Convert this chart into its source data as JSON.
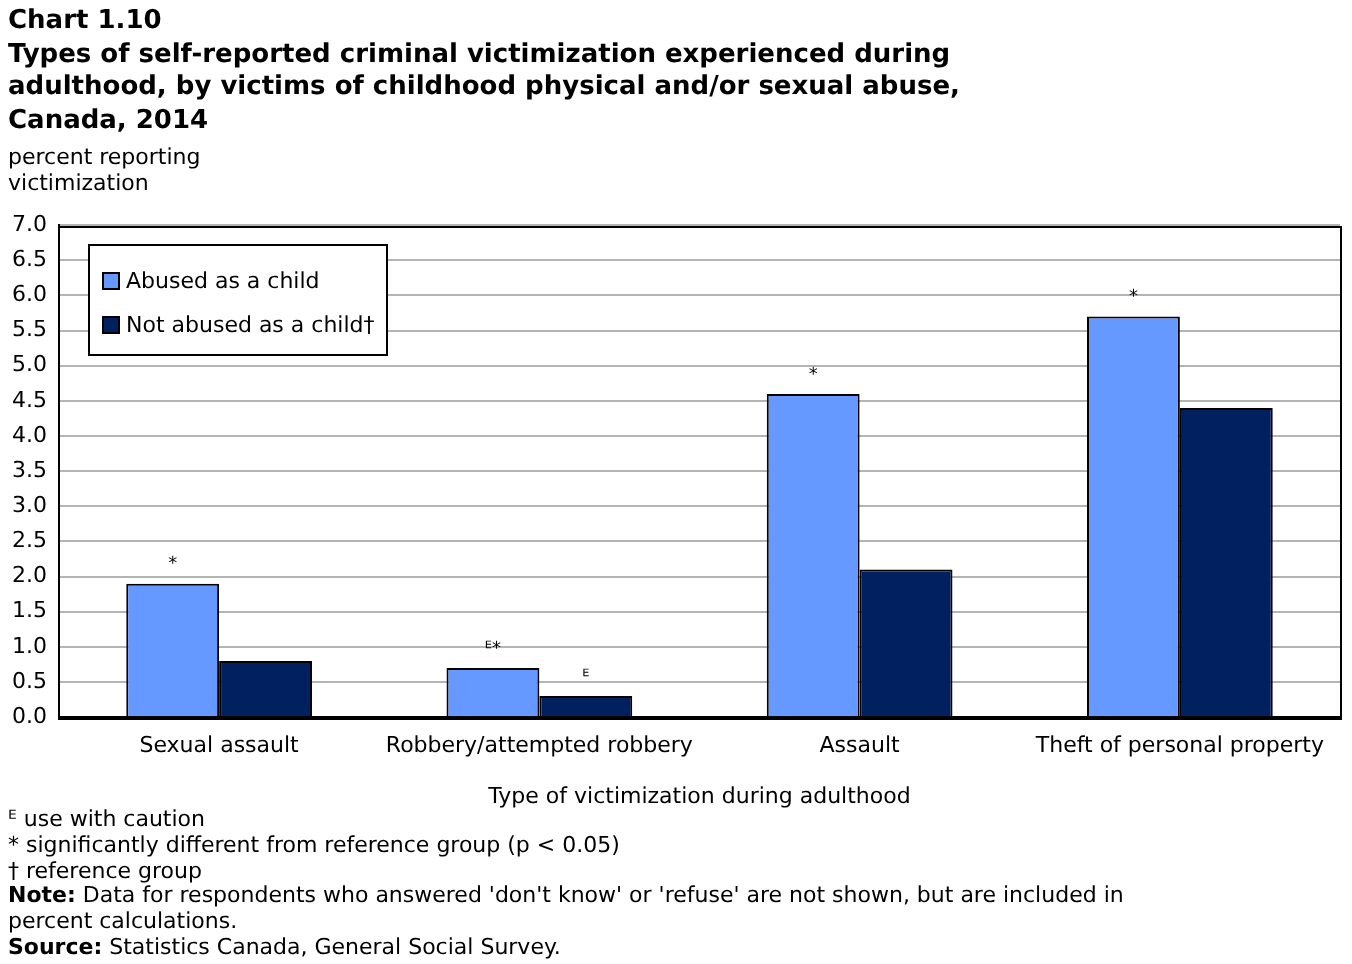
{
  "chart_data": {
    "type": "bar",
    "title": "Chart 1.10",
    "subtitle": "Types of self-reported criminal victimization experienced during adulthood, by victims of childhood physical and/or sexual abuse, Canada, 2014",
    "ylabel": "percent reporting victimization",
    "xlabel": "Type of victimization during adulthood",
    "categories": [
      "Sexual assault",
      "Robbery/attempted robbery",
      "Assault",
      "Theft of personal property"
    ],
    "series": [
      {
        "name": "Abused as a child",
        "color": "#6699ff",
        "values": [
          1.9,
          0.7,
          4.6,
          5.7
        ],
        "value_labels": [
          "*",
          "ᴱ*",
          "*",
          "*"
        ]
      },
      {
        "name": "Not abused as a child†",
        "color": "#002060",
        "values": [
          0.8,
          0.3,
          2.1,
          4.4
        ],
        "value_labels": [
          null,
          "ᴱ",
          null,
          null
        ]
      }
    ],
    "ylim": [
      0,
      7
    ],
    "yticks": [
      {
        "value": 0,
        "label": "0.0"
      },
      {
        "value": 0.5,
        "label": "0.5"
      },
      {
        "value": 1,
        "label": "1.0"
      },
      {
        "value": 1.5,
        "label": "1.5"
      },
      {
        "value": 2,
        "label": "2.0"
      },
      {
        "value": 2.5,
        "label": "2.5"
      },
      {
        "value": 3,
        "label": "3.0"
      },
      {
        "value": 3.5,
        "label": "3.5"
      },
      {
        "value": 4,
        "label": "4.0"
      },
      {
        "value": 4.5,
        "label": "4.5"
      },
      {
        "value": 5,
        "label": "5.0"
      },
      {
        "value": 5.5,
        "label": "5.5"
      },
      {
        "value": 6,
        "label": "6.0"
      },
      {
        "value": 6.5,
        "label": "6.5"
      },
      {
        "value": 7,
        "label": "7.0"
      }
    ],
    "grid": "y",
    "legend": "top left",
    "annotations": [
      "ᴱ use with caution",
      "* significantly different from reference group (p < 0.05)",
      "† reference group",
      "Note: Data for respondents who answered 'don't know' or 'refuse' are not shown, but are included in percent calculations.",
      "Source: Statistics Canada, General Social Survey."
    ]
  }
}
